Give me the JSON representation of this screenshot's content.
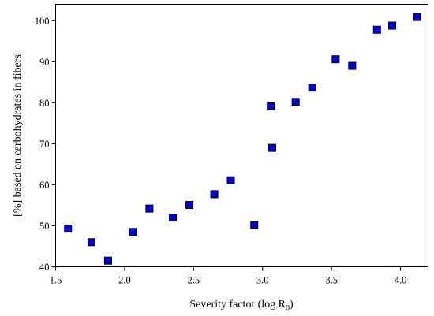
{
  "chart_data": {
    "type": "scatter",
    "title": "",
    "xlabel": "Severity factor (log R",
    "xlabel_subscript": "0",
    "xlabel_suffix": ")",
    "ylabel": "[%] based on carbohydrates in fibers",
    "xlim": [
      1.5,
      4.2
    ],
    "ylim": [
      40,
      104
    ],
    "xticks": [
      1.5,
      2.0,
      2.5,
      3.0,
      3.5,
      4.0
    ],
    "xtick_labels": [
      "1.5",
      "2.0",
      "2.5",
      "3.0",
      "3.5",
      "4.0"
    ],
    "yticks": [
      40,
      50,
      60,
      70,
      80,
      90,
      100
    ],
    "ytick_labels": [
      "40",
      "50",
      "60",
      "70",
      "80",
      "90",
      "100"
    ],
    "grid": false,
    "marker": "square",
    "marker_color": "#0000e6",
    "series": [
      {
        "x": [
          1.59,
          1.76,
          1.88,
          2.06,
          2.18,
          2.35,
          2.47,
          2.65,
          2.77,
          2.94,
          3.06,
          3.07,
          3.24,
          3.36,
          3.53,
          3.65,
          3.83,
          3.94,
          4.12
        ],
        "y": [
          49.3,
          46.0,
          41.5,
          48.5,
          54.2,
          52.0,
          55.1,
          57.7,
          61.1,
          50.2,
          79.1,
          69.0,
          80.2,
          83.7,
          90.6,
          89.0,
          97.8,
          98.8,
          100.9
        ]
      }
    ]
  }
}
